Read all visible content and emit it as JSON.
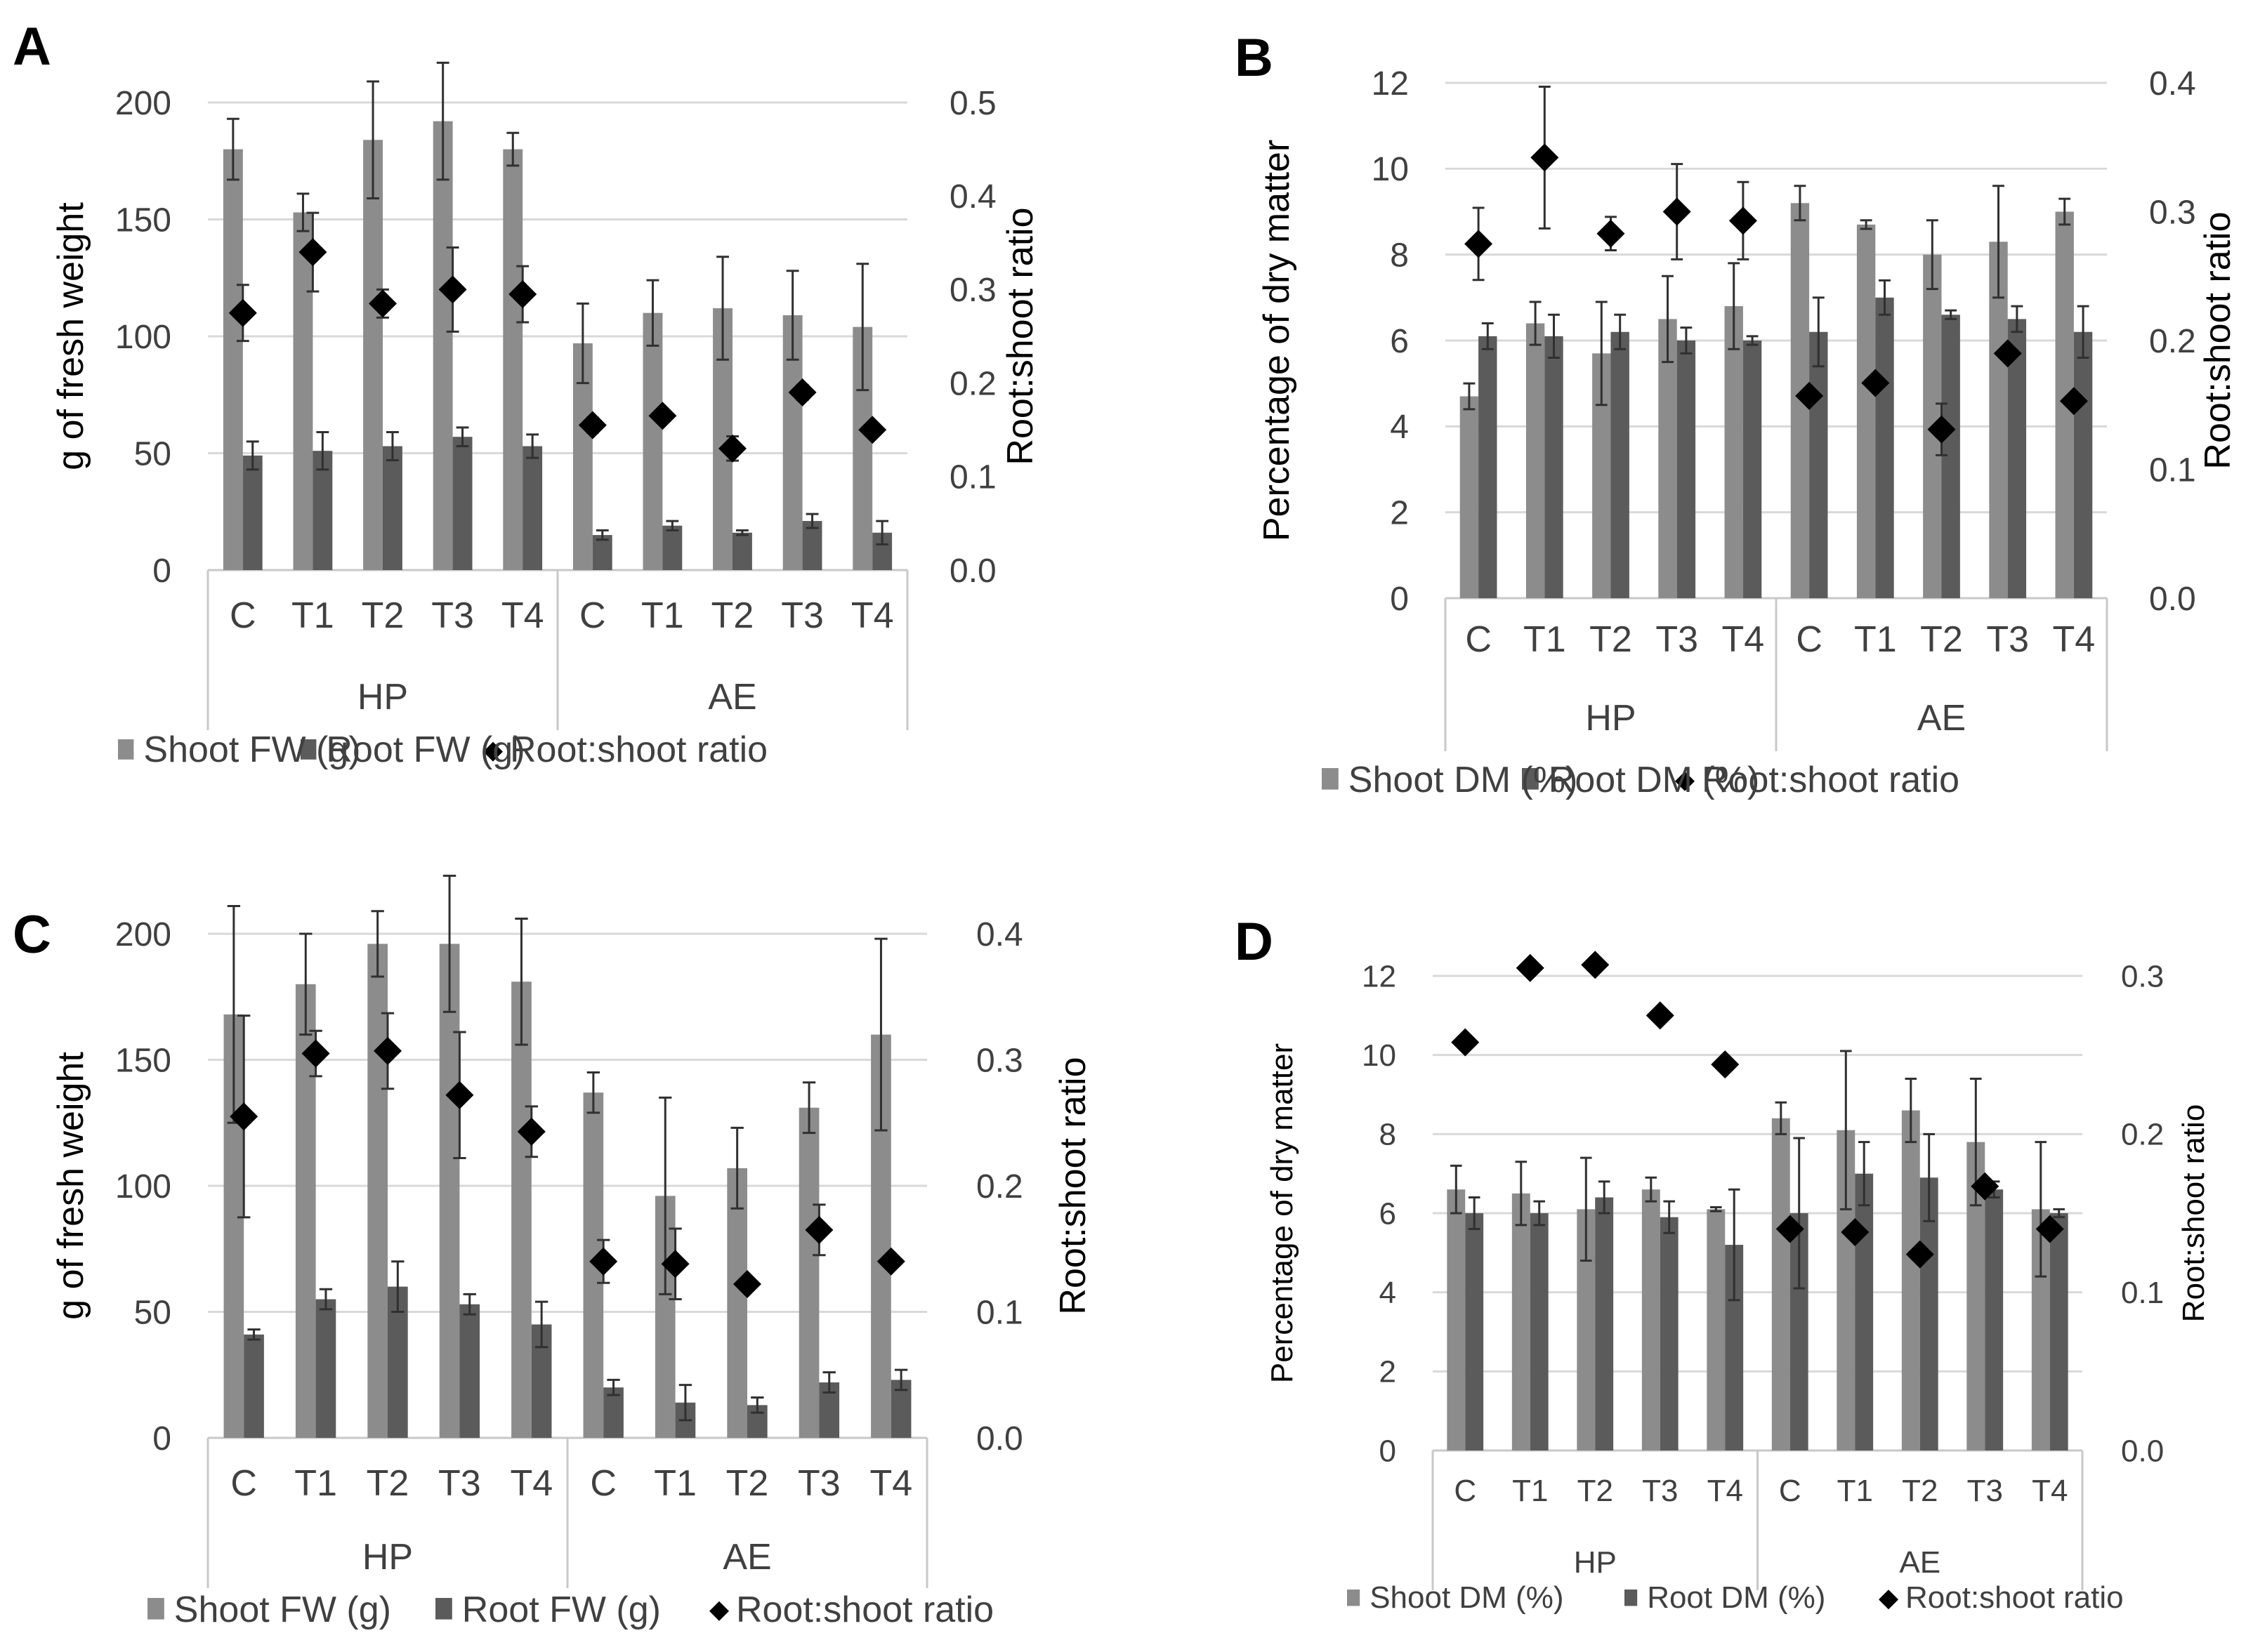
{
  "panels": [
    {
      "letter": "A",
      "left_axis_label": "g of fresh weight",
      "right_axis_label": "Root:shoot ratio",
      "left_ticks": [
        "0",
        "50",
        "100",
        "150",
        "200"
      ],
      "right_ticks": [
        "0.0",
        "0.1",
        "0.2",
        "0.3",
        "0.4",
        "0.5"
      ],
      "legend": [
        "Shoot FW (g)",
        "Root FW  (g)",
        "Root:shoot ratio"
      ]
    },
    {
      "letter": "B",
      "left_axis_label": "Percentage of dry matter",
      "right_axis_label": "Root:shoot ratio",
      "left_ticks": [
        "0",
        "2",
        "4",
        "6",
        "8",
        "10",
        "12"
      ],
      "right_ticks": [
        "0.0",
        "0.1",
        "0.2",
        "0.3",
        "0.4"
      ],
      "legend": [
        "Shoot DM (%)",
        "Root DM (%)",
        "Root:shoot ratio"
      ]
    },
    {
      "letter": "C",
      "left_axis_label": "g of fresh weight",
      "right_axis_label": "Root:shoot ratio",
      "left_ticks": [
        "0",
        "50",
        "100",
        "150",
        "200"
      ],
      "right_ticks": [
        "0.0",
        "0.1",
        "0.2",
        "0.3",
        "0.4"
      ],
      "legend": [
        "Shoot FW (g)",
        "Root FW (g)",
        "Root:shoot ratio"
      ]
    },
    {
      "letter": "D",
      "left_axis_label": "Percentage of dry matter",
      "right_axis_label": "Root:shoot ratio",
      "left_ticks": [
        "0",
        "2",
        "4",
        "6",
        "8",
        "10",
        "12"
      ],
      "right_ticks": [
        "0.0",
        "0.1",
        "0.2",
        "0.3"
      ],
      "legend": [
        "Shoot DM (%)",
        "Root DM (%)",
        "Root:shoot ratio"
      ]
    }
  ],
  "colors": {
    "shoot": "#8c8c8c",
    "root": "#5b5b5b",
    "ratio": "#000000",
    "grid": "#d9d9d9",
    "text": "#404040",
    "axis": "#c8c8c8"
  },
  "chart_data": [
    {
      "type": "bar",
      "title": "A",
      "categories": [
        "C",
        "T1",
        "T2",
        "T3",
        "T4",
        "C",
        "T1",
        "T2",
        "T3",
        "T4"
      ],
      "groups": [
        {
          "name": "HP",
          "categories": [
            "C",
            "T1",
            "T2",
            "T3",
            "T4"
          ]
        },
        {
          "name": "AE",
          "categories": [
            "C",
            "T1",
            "T2",
            "T3",
            "T4"
          ]
        }
      ],
      "ylabel": "g of fresh weight",
      "y2label": "Root:shoot ratio",
      "ylim": [
        0,
        200
      ],
      "y2lim": [
        0,
        0.5
      ],
      "grid": true,
      "legend_position": "bottom",
      "series": [
        {
          "name": "Shoot FW (g)",
          "axis": "left",
          "kind": "bar",
          "values": [
            180,
            153,
            184,
            192,
            180,
            97,
            110,
            112,
            109,
            104
          ],
          "errors": [
            13,
            8,
            25,
            25,
            7,
            17,
            14,
            22,
            19,
            27
          ]
        },
        {
          "name": "Root FW  (g)",
          "axis": "left",
          "kind": "bar",
          "values": [
            49,
            51,
            53,
            57,
            53,
            15,
            19,
            16,
            21,
            16
          ],
          "errors": [
            6,
            8,
            6,
            4,
            5,
            2,
            2,
            1,
            3,
            5
          ]
        },
        {
          "name": "Root:shoot ratio",
          "axis": "right",
          "kind": "marker",
          "values": [
            0.275,
            0.34,
            0.285,
            0.3,
            0.295,
            0.155,
            0.165,
            0.13,
            0.19,
            0.15
          ],
          "errors": [
            0.03,
            0.042,
            0.015,
            0.045,
            0.03,
            0.008,
            0,
            0.013,
            0.008,
            0
          ]
        }
      ]
    },
    {
      "type": "bar",
      "title": "B",
      "categories": [
        "C",
        "T1",
        "T2",
        "T3",
        "T4",
        "C",
        "T1",
        "T2",
        "T3",
        "T4"
      ],
      "groups": [
        {
          "name": "HP",
          "categories": [
            "C",
            "T1",
            "T2",
            "T3",
            "T4"
          ]
        },
        {
          "name": "AE",
          "categories": [
            "C",
            "T1",
            "T2",
            "T3",
            "T4"
          ]
        }
      ],
      "ylabel": "Percentage of dry matter",
      "y2label": "Root:shoot ratio",
      "ylim": [
        0,
        12
      ],
      "y2lim": [
        0,
        0.4
      ],
      "grid": true,
      "legend_position": "bottom",
      "series": [
        {
          "name": "Shoot DM (%)",
          "axis": "left",
          "kind": "bar",
          "values": [
            4.7,
            6.4,
            5.7,
            6.5,
            6.8,
            9.2,
            8.7,
            8.0,
            8.3,
            9.0
          ],
          "errors": [
            0.3,
            0.5,
            1.2,
            1.0,
            1.0,
            0.4,
            0.1,
            0.8,
            1.3,
            0.3
          ]
        },
        {
          "name": "Root DM (%)",
          "axis": "left",
          "kind": "bar",
          "values": [
            6.1,
            6.1,
            6.2,
            6.0,
            6.0,
            6.2,
            7.0,
            6.6,
            6.5,
            6.2
          ],
          "errors": [
            0.3,
            0.5,
            0.4,
            0.3,
            0.1,
            0.8,
            0.4,
            0.1,
            0.3,
            0.6
          ]
        },
        {
          "name": "Root:shoot ratio",
          "axis": "right",
          "kind": "marker",
          "values": [
            0.275,
            0.342,
            0.283,
            0.3,
            0.293,
            0.157,
            0.167,
            0.131,
            0.19,
            0.153
          ],
          "errors": [
            0.028,
            0.055,
            0.013,
            0.037,
            0.03,
            0,
            0,
            0.02,
            0,
            0
          ]
        }
      ]
    },
    {
      "type": "bar",
      "title": "C",
      "categories": [
        "C",
        "T1",
        "T2",
        "T3",
        "T4",
        "C",
        "T1",
        "T2",
        "T3",
        "T4"
      ],
      "groups": [
        {
          "name": "HP",
          "categories": [
            "C",
            "T1",
            "T2",
            "T3",
            "T4"
          ]
        },
        {
          "name": "AE",
          "categories": [
            "C",
            "T1",
            "T2",
            "T3",
            "T4"
          ]
        }
      ],
      "ylabel": "g of fresh weight",
      "y2label": "Root:shoot ratio",
      "ylim": [
        0,
        200
      ],
      "y2lim": [
        0,
        0.4
      ],
      "grid": true,
      "legend_position": "bottom",
      "series": [
        {
          "name": "Shoot FW (g)",
          "axis": "left",
          "kind": "bar",
          "values": [
            168,
            180,
            196,
            196,
            181,
            137,
            96,
            107,
            131,
            160
          ],
          "errors": [
            43,
            20,
            13,
            27,
            25,
            8,
            39,
            16,
            10,
            38
          ]
        },
        {
          "name": "Root FW (g)",
          "axis": "left",
          "kind": "bar",
          "values": [
            41,
            55,
            60,
            53,
            45,
            20,
            14,
            13,
            22,
            23
          ],
          "errors": [
            2,
            4,
            10,
            4,
            9,
            3,
            7,
            3,
            4,
            4
          ]
        },
        {
          "name": "Root:shoot ratio",
          "axis": "right",
          "kind": "marker",
          "values": [
            0.255,
            0.305,
            0.307,
            0.272,
            0.243,
            0.14,
            0.138,
            0.122,
            0.165,
            0.14
          ],
          "errors": [
            0.08,
            0.018,
            0.03,
            0.05,
            0.02,
            0.017,
            0.028,
            0,
            0.02,
            0.005
          ]
        }
      ]
    },
    {
      "type": "bar",
      "title": "D",
      "categories": [
        "C",
        "T1",
        "T2",
        "T3",
        "T4",
        "C",
        "T1",
        "T2",
        "T3",
        "T4"
      ],
      "groups": [
        {
          "name": "HP",
          "categories": [
            "C",
            "T1",
            "T2",
            "T3",
            "T4"
          ]
        },
        {
          "name": "AE",
          "categories": [
            "C",
            "T1",
            "T2",
            "T3",
            "T4"
          ]
        }
      ],
      "ylabel": "Percentage of dry matter",
      "y2label": "Root:shoot ratio",
      "ylim": [
        0,
        12
      ],
      "y2lim": [
        0,
        0.3
      ],
      "grid": true,
      "legend_position": "bottom",
      "series": [
        {
          "name": "Shoot DM (%)",
          "axis": "left",
          "kind": "bar",
          "values": [
            6.6,
            6.5,
            6.1,
            6.6,
            6.1,
            8.4,
            8.1,
            8.6,
            7.8,
            6.1
          ],
          "errors": [
            0.6,
            0.8,
            1.3,
            0.3,
            0.05,
            0.4,
            2.0,
            0.8,
            1.6,
            1.7
          ]
        },
        {
          "name": "Root DM (%)",
          "axis": "left",
          "kind": "bar",
          "values": [
            6.0,
            6.0,
            6.4,
            5.9,
            5.2,
            6.0,
            7.0,
            6.9,
            6.6,
            6.0
          ],
          "errors": [
            0.4,
            0.3,
            0.4,
            0.4,
            1.4,
            1.9,
            0.8,
            1.1,
            0.2,
            0.1
          ]
        },
        {
          "name": "Root:shoot ratio",
          "axis": "right",
          "kind": "marker",
          "values": [
            0.258,
            0.305,
            0.307,
            0.275,
            0.244,
            0.14,
            0.138,
            0.124,
            0.167,
            0.14
          ],
          "errors": [
            0,
            0,
            0,
            0,
            0,
            0,
            0,
            0,
            0,
            0
          ]
        }
      ]
    }
  ]
}
